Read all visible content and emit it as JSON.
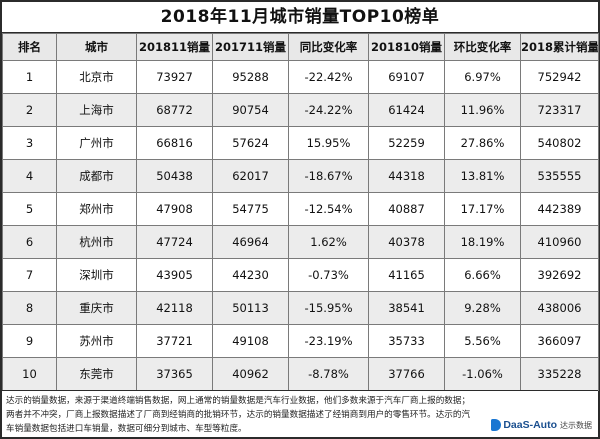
{
  "chart_data": {
    "type": "table",
    "title": "2018年11月城市销量TOP10榜单",
    "columns": [
      "排名",
      "城市",
      "201811销量",
      "201711销量",
      "同比变化率",
      "201810销量",
      "环比变化率",
      "2018累计销量"
    ],
    "rows": [
      [
        "1",
        "北京市",
        "73927",
        "95288",
        "-22.42%",
        "69107",
        "6.97%",
        "752942"
      ],
      [
        "2",
        "上海市",
        "68772",
        "90754",
        "-24.22%",
        "61424",
        "11.96%",
        "723317"
      ],
      [
        "3",
        "广州市",
        "66816",
        "57624",
        "15.95%",
        "52259",
        "27.86%",
        "540802"
      ],
      [
        "4",
        "成都市",
        "50438",
        "62017",
        "-18.67%",
        "44318",
        "13.81%",
        "535555"
      ],
      [
        "5",
        "郑州市",
        "47908",
        "54775",
        "-12.54%",
        "40887",
        "17.17%",
        "442389"
      ],
      [
        "6",
        "杭州市",
        "47724",
        "46964",
        "1.62%",
        "40378",
        "18.19%",
        "410960"
      ],
      [
        "7",
        "深圳市",
        "43905",
        "44230",
        "-0.73%",
        "41165",
        "6.66%",
        "392692"
      ],
      [
        "8",
        "重庆市",
        "42118",
        "50113",
        "-15.95%",
        "38541",
        "9.28%",
        "438006"
      ],
      [
        "9",
        "苏州市",
        "37721",
        "49108",
        "-23.19%",
        "35733",
        "5.56%",
        "366097"
      ],
      [
        "10",
        "东莞市",
        "37365",
        "40962",
        "-8.78%",
        "37766",
        "-1.06%",
        "335228"
      ]
    ]
  },
  "footnote": "达示的销量数据，来源于渠道终端销售数据，网上通常的销量数据是汽车行业数据，他们多数来源于汽车厂商上报的数据；两者并不冲突，厂商上报数据描述了厂商到经销商的批销环节，达示的销量数据描述了经销商到用户的零售环节。达示的汽车销量数据包括进口车销量，数据可细分到城市、车型等粒度。",
  "logo": {
    "word": "DaaS-Auto",
    "sub": "达示数据"
  },
  "colors": {
    "header_bg": "#e8e8e8",
    "alt_row_bg": "#ececec",
    "border": "#7a7a7a",
    "logo_blue": "#1976d2"
  }
}
